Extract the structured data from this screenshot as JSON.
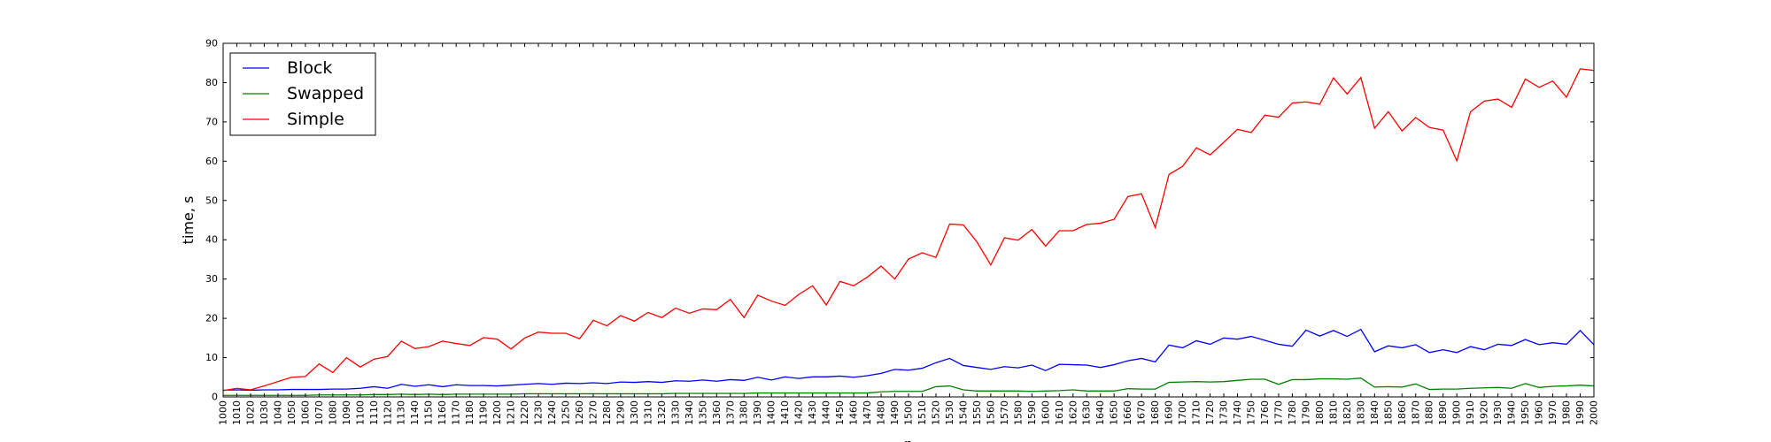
{
  "chart_data": {
    "type": "line",
    "title": "",
    "xlabel": "n",
    "ylabel": "time, s",
    "xlim": [
      1000,
      2000
    ],
    "ylim": [
      0,
      90
    ],
    "x_ticks": [
      1000,
      1010,
      1020,
      1030,
      1040,
      1050,
      1060,
      1070,
      1080,
      1090,
      1100,
      1110,
      1120,
      1130,
      1140,
      1150,
      1160,
      1170,
      1180,
      1190,
      1200,
      1210,
      1220,
      1230,
      1240,
      1250,
      1260,
      1270,
      1280,
      1290,
      1300,
      1310,
      1320,
      1330,
      1340,
      1350,
      1360,
      1370,
      1380,
      1390,
      1400,
      1410,
      1420,
      1430,
      1440,
      1450,
      1460,
      1470,
      1480,
      1490,
      1500,
      1510,
      1520,
      1530,
      1540,
      1550,
      1560,
      1570,
      1580,
      1590,
      1600,
      1610,
      1620,
      1630,
      1640,
      1650,
      1660,
      1670,
      1680,
      1690,
      1700,
      1710,
      1720,
      1730,
      1740,
      1750,
      1760,
      1770,
      1780,
      1790,
      1800,
      1810,
      1820,
      1830,
      1840,
      1850,
      1860,
      1870,
      1880,
      1890,
      1900,
      1910,
      1920,
      1930,
      1940,
      1950,
      1960,
      1970,
      1980,
      1990,
      2000
    ],
    "y_ticks": [
      0,
      10,
      20,
      30,
      40,
      50,
      60,
      70,
      80,
      90
    ],
    "grid": false,
    "legend_position": "top-left",
    "x": [
      1000,
      1010,
      1020,
      1030,
      1040,
      1050,
      1060,
      1070,
      1080,
      1090,
      1100,
      1110,
      1120,
      1130,
      1140,
      1150,
      1160,
      1170,
      1180,
      1190,
      1200,
      1210,
      1220,
      1230,
      1240,
      1250,
      1260,
      1270,
      1280,
      1290,
      1300,
      1310,
      1320,
      1330,
      1340,
      1350,
      1360,
      1370,
      1380,
      1390,
      1400,
      1410,
      1420,
      1430,
      1440,
      1450,
      1460,
      1470,
      1480,
      1490,
      1500,
      1510,
      1520,
      1530,
      1540,
      1550,
      1560,
      1570,
      1580,
      1590,
      1600,
      1610,
      1620,
      1630,
      1640,
      1650,
      1660,
      1670,
      1680,
      1690,
      1700,
      1710,
      1720,
      1730,
      1740,
      1750,
      1760,
      1770,
      1780,
      1790,
      1800,
      1810,
      1820,
      1830,
      1840,
      1850,
      1860,
      1870,
      1880,
      1890,
      1900,
      1910,
      1920,
      1930,
      1940,
      1950,
      1960,
      1970,
      1980,
      1990,
      2000
    ],
    "series": [
      {
        "name": "Block",
        "color": "#0000ff",
        "values": [
          1.7,
          1.8,
          1.7,
          1.8,
          1.8,
          1.9,
          1.9,
          1.9,
          2.0,
          2.0,
          2.2,
          2.6,
          2.2,
          3.2,
          2.7,
          3.1,
          2.6,
          3.1,
          2.9,
          2.9,
          2.8,
          3.0,
          3.2,
          3.4,
          3.2,
          3.5,
          3.4,
          3.6,
          3.4,
          3.8,
          3.7,
          3.9,
          3.7,
          4.1,
          4.0,
          4.3,
          4.0,
          4.4,
          4.2,
          5.0,
          4.3,
          5.1,
          4.7,
          5.1,
          5.1,
          5.3,
          5.0,
          5.4,
          6.0,
          7.0,
          6.8,
          7.3,
          8.7,
          9.8,
          8.0,
          7.5,
          7.0,
          7.7,
          7.4,
          8.1,
          6.7,
          8.3,
          8.2,
          8.1,
          7.5,
          8.2,
          9.2,
          9.8,
          8.9,
          13.2,
          12.5,
          14.3,
          13.4,
          15.0,
          14.7,
          15.4,
          14.4,
          13.4,
          12.9,
          17.0,
          15.5,
          16.9,
          15.4,
          17.2,
          11.5,
          13.0,
          12.5,
          13.3,
          11.3,
          12.0,
          11.3,
          12.8,
          12.0,
          13.4,
          13.1,
          14.6,
          13.3,
          13.8,
          13.4,
          16.9,
          13.3
        ]
      },
      {
        "name": "Swapped",
        "color": "#008000",
        "values": [
          0.4,
          0.4,
          0.4,
          0.4,
          0.4,
          0.4,
          0.4,
          0.5,
          0.5,
          0.5,
          0.5,
          0.6,
          0.6,
          0.7,
          0.6,
          0.7,
          0.6,
          0.7,
          0.7,
          0.7,
          0.7,
          0.7,
          0.8,
          0.8,
          0.8,
          0.8,
          0.8,
          0.8,
          0.8,
          0.8,
          0.8,
          0.8,
          0.8,
          0.9,
          0.9,
          0.9,
          0.9,
          0.9,
          0.9,
          1.0,
          1.0,
          1.0,
          1.0,
          1.0,
          1.0,
          1.0,
          1.0,
          1.0,
          1.3,
          1.4,
          1.4,
          1.4,
          2.6,
          2.8,
          1.8,
          1.5,
          1.5,
          1.5,
          1.5,
          1.4,
          1.5,
          1.6,
          1.8,
          1.5,
          1.5,
          1.5,
          2.1,
          2.0,
          2.0,
          3.7,
          3.8,
          3.9,
          3.8,
          3.9,
          4.2,
          4.5,
          4.5,
          3.2,
          4.4,
          4.4,
          4.6,
          4.6,
          4.5,
          4.8,
          2.5,
          2.6,
          2.5,
          3.3,
          1.9,
          2.0,
          2.0,
          2.2,
          2.3,
          2.4,
          2.2,
          3.4,
          2.4,
          2.7,
          2.8,
          3.0,
          2.8
        ]
      },
      {
        "name": "Simple",
        "color": "#ff0000",
        "values": [
          1.6,
          2.2,
          1.8,
          2.8,
          3.9,
          5.0,
          5.2,
          8.4,
          6.2,
          10.0,
          7.6,
          9.6,
          10.3,
          14.2,
          12.3,
          12.8,
          14.2,
          13.6,
          13.1,
          15.1,
          14.7,
          12.2,
          15.0,
          16.5,
          16.2,
          16.2,
          14.8,
          19.5,
          18.1,
          20.7,
          19.3,
          21.5,
          20.2,
          22.6,
          21.3,
          22.4,
          22.2,
          24.8,
          20.2,
          25.9,
          24.4,
          23.3,
          26.1,
          28.3,
          23.4,
          29.4,
          28.3,
          30.5,
          33.3,
          30.0,
          35.1,
          36.7,
          35.5,
          44.0,
          43.8,
          39.4,
          33.6,
          40.5,
          39.9,
          42.6,
          38.4,
          42.3,
          42.3,
          43.9,
          44.2,
          45.2,
          51.0,
          51.7,
          43.1,
          56.6,
          58.7,
          63.4,
          61.6,
          64.8,
          68.1,
          67.3,
          71.7,
          71.2,
          74.8,
          75.1,
          74.5,
          81.2,
          77.1,
          81.3,
          68.4,
          72.6,
          67.7,
          71.1,
          68.6,
          67.9,
          60.1,
          72.6,
          75.3,
          75.8,
          73.7,
          80.9,
          78.8,
          80.4,
          76.3,
          83.5,
          83.1
        ]
      }
    ]
  }
}
